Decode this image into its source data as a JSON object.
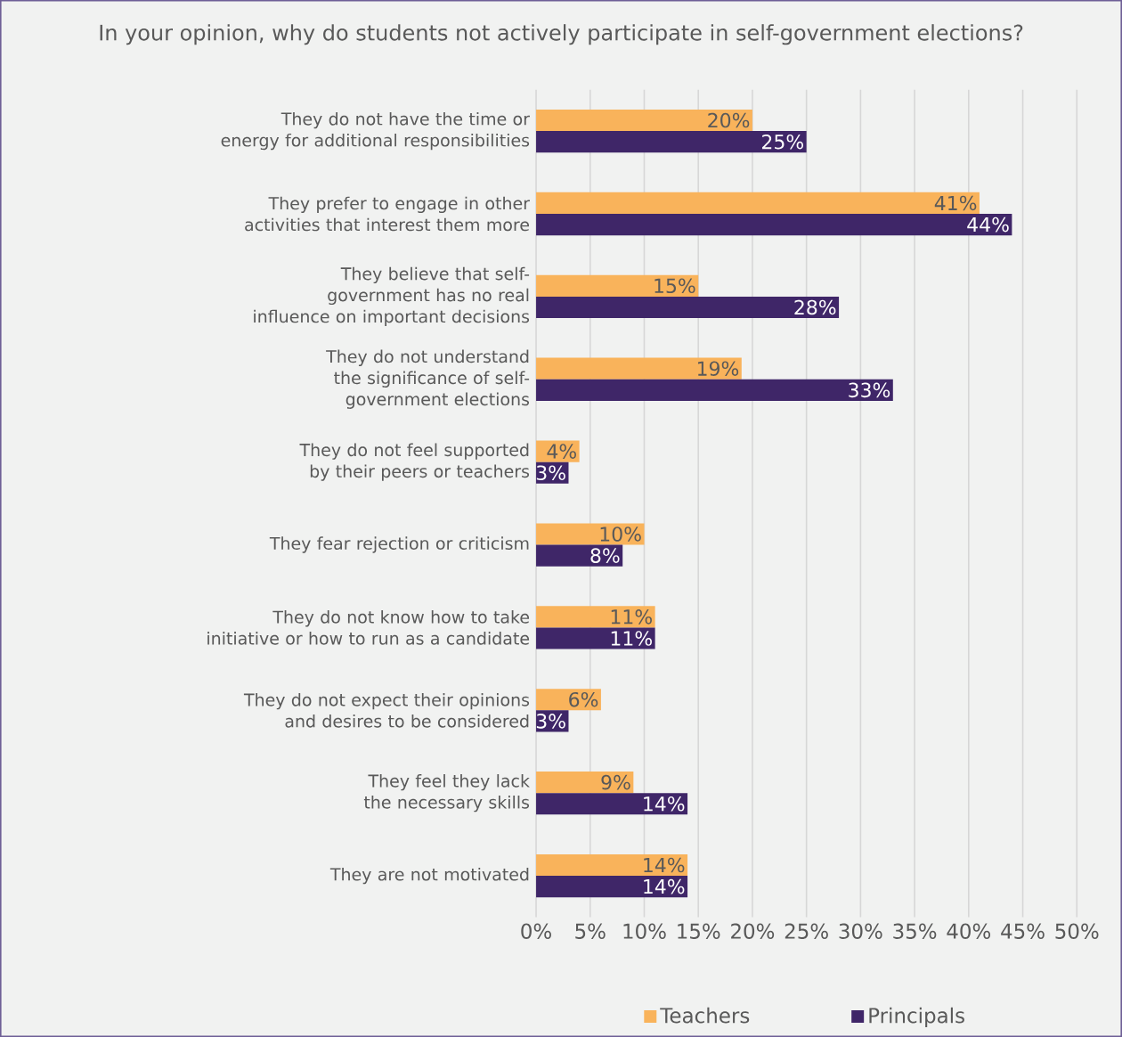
{
  "chart_data": {
    "type": "bar",
    "orientation": "horizontal",
    "title": "In your opinion, why do students not actively participate in self-government elections?",
    "categories": [
      "They do not have the time or energy for additional responsibilities",
      "They prefer to engage in other activities that interest them more",
      "They believe that self-government has no real influence on important decisions",
      "They do not understand the significance of self-government elections",
      "They do not feel supported by their peers or teachers",
      "They fear rejection or criticism",
      "They do not know how to take initiative or how to run as a candidate",
      "They do not expect their opinions and desires to be considered",
      "They feel they lack the necessary skills",
      "They are not motivated"
    ],
    "series": [
      {
        "name": "Teachers",
        "color": "#f9b35b",
        "values": [
          20,
          41,
          15,
          19,
          4,
          10,
          11,
          6,
          9,
          14
        ],
        "value_labels": [
          "20%",
          "41%",
          "15%",
          "19%",
          "4%",
          "10%",
          "11%",
          "6%",
          "9%",
          "14%"
        ]
      },
      {
        "name": "Principals",
        "color": "#3f2668",
        "values": [
          25,
          44,
          28,
          33,
          3,
          8,
          11,
          3,
          14,
          14
        ],
        "value_labels": [
          "25%",
          "44%",
          "28%",
          "33%",
          "3%",
          "8%",
          "11%",
          "3%",
          "14%",
          "14%"
        ]
      }
    ],
    "xlim": [
      0,
      50
    ],
    "xticks": [
      {
        "value": 0,
        "label": "0%"
      },
      {
        "value": 5,
        "label": "5%"
      },
      {
        "value": 10,
        "label": "10%"
      },
      {
        "value": 15,
        "label": "15%"
      },
      {
        "value": 20,
        "label": "20%"
      },
      {
        "value": 25,
        "label": "25%"
      },
      {
        "value": 30,
        "label": "30%"
      },
      {
        "value": 35,
        "label": "35%"
      },
      {
        "value": 40,
        "label": "40%"
      },
      {
        "value": 45,
        "label": "45%"
      },
      {
        "value": 50,
        "label": "50%"
      }
    ],
    "grid": "x",
    "legend": "bottom"
  }
}
